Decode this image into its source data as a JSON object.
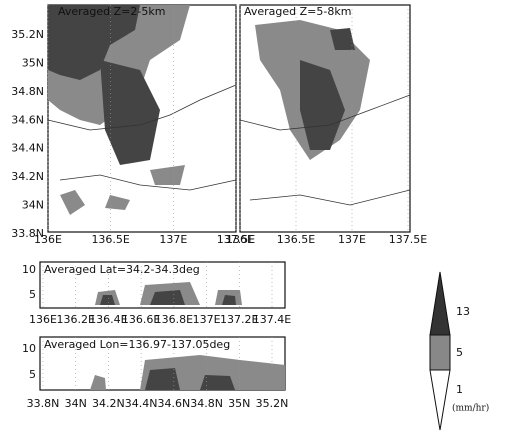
{
  "panels": [
    {
      "title": "Averaged Z=2-5km",
      "yticks": [
        "35.2N",
        "35N",
        "34.8N",
        "34.6N",
        "34.4N",
        "34.2N",
        "34N",
        "33.8N"
      ],
      "xticks": [
        "136E",
        "136.5E",
        "137E",
        "137.5E"
      ]
    },
    {
      "title": "Averaged Z=5-8km",
      "xticks": [
        "136E",
        "136.5E",
        "137E",
        "137.5E"
      ]
    },
    {
      "title": "Averaged Lat=34.2-34.3deg",
      "yticks": [
        "10",
        "5"
      ],
      "xticks": [
        "136E",
        "136.2E",
        "136.4E",
        "136.6E",
        "136.8E",
        "137E",
        "137.2E",
        "137.4E"
      ]
    },
    {
      "title": "Averaged Lon=136.97-137.05deg",
      "yticks": [
        "10",
        "5"
      ],
      "xticks": [
        "33.8N",
        "34N",
        "34.2N",
        "34.4N",
        "34.6N",
        "34.8N",
        "35N",
        "35.2N"
      ]
    }
  ],
  "colorbar": {
    "labels": [
      "13",
      "5",
      "1"
    ],
    "unit": "(mm/hr)"
  }
}
